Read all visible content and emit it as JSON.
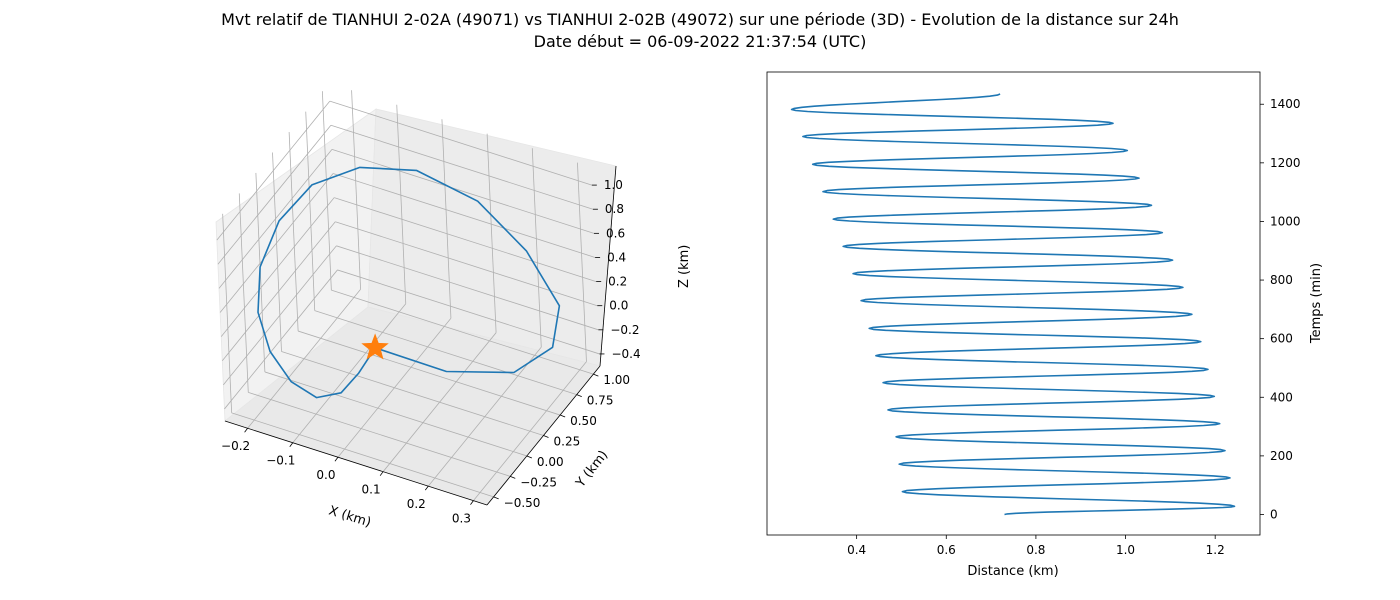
{
  "title_line_1": "Mvt relatif de TIANHUI 2-02A (49071) vs TIANHUI 2-02B (49072) sur une période (3D) - Evolution de la distance sur 24h",
  "title_line_2": "Date début = 06-09-2022 21:37:54 (UTC)",
  "colors": {
    "trajectory": "#1f77b4",
    "start_marker": "#ff7f0e",
    "grid": "#b0b0b0",
    "pane": "#f2f2f2"
  },
  "chart_data": [
    {
      "type": "line3d",
      "xlabel": "X (km)",
      "ylabel": "Y (km)",
      "zlabel": "Z (km)",
      "x_ticks": [
        "−0.2",
        "−0.1",
        "0.0",
        "0.1",
        "0.2",
        "0.3"
      ],
      "y_ticks": [
        "−0.50",
        "−0.25",
        "0.00",
        "0.25",
        "0.50",
        "0.75",
        "1.00"
      ],
      "z_ticks": [
        "−0.4",
        "−0.2",
        "0.0",
        "0.2",
        "0.4",
        "0.6",
        "0.8",
        "1.0"
      ],
      "xlim": [
        -0.25,
        0.33
      ],
      "ylim": [
        -0.6,
        1.1
      ],
      "zlim": [
        -0.5,
        1.15
      ],
      "grid": true,
      "marker": "star",
      "marker_point": {
        "x": 0.0,
        "y": 0.0,
        "z": 0.0
      },
      "trajectory": [
        {
          "x": 0.0,
          "y": 0.0,
          "z": 0.0
        },
        {
          "x": 0.15,
          "y": 0.05,
          "z": -0.05
        },
        {
          "x": 0.27,
          "y": 0.25,
          "z": -0.05
        },
        {
          "x": 0.32,
          "y": 0.5,
          "z": 0.05
        },
        {
          "x": 0.3,
          "y": 0.75,
          "z": 0.2
        },
        {
          "x": 0.2,
          "y": 0.95,
          "z": 0.4
        },
        {
          "x": 0.08,
          "y": 1.05,
          "z": 0.6
        },
        {
          "x": -0.05,
          "y": 1.02,
          "z": 0.72
        },
        {
          "x": -0.15,
          "y": 0.85,
          "z": 0.74
        },
        {
          "x": -0.22,
          "y": 0.6,
          "z": 0.68
        },
        {
          "x": -0.25,
          "y": 0.3,
          "z": 0.55
        },
        {
          "x": -0.25,
          "y": 0.0,
          "z": 0.37
        },
        {
          "x": -0.22,
          "y": -0.25,
          "z": 0.2
        },
        {
          "x": -0.17,
          "y": -0.42,
          "z": 0.05
        },
        {
          "x": -0.11,
          "y": -0.52,
          "z": -0.06
        },
        {
          "x": -0.05,
          "y": -0.55,
          "z": -0.1
        },
        {
          "x": -0.01,
          "y": -0.45,
          "z": -0.08
        },
        {
          "x": 0.0,
          "y": -0.25,
          "z": -0.04
        },
        {
          "x": 0.0,
          "y": -0.05,
          "z": -0.01
        }
      ]
    },
    {
      "type": "line",
      "xlabel": "Distance (km)",
      "ylabel": "Temps (min)",
      "xlim": [
        0.2,
        1.3
      ],
      "ylim": [
        -70,
        1510
      ],
      "x_ticks": [
        0.4,
        0.6,
        0.8,
        1.0,
        1.2
      ],
      "x_tick_labels": [
        "0.4",
        "0.6",
        "0.8",
        "1.0",
        "1.2"
      ],
      "y_ticks": [
        0,
        200,
        400,
        600,
        800,
        1000,
        1200,
        1400
      ],
      "y_tick_labels": [
        "0",
        "200",
        "400",
        "600",
        "800",
        "1000",
        "1200",
        "1400"
      ],
      "y_axis_side": "right",
      "grid": false,
      "series": [
        {
          "x": [
            0.73,
            1.243,
            0.502,
            1.233,
            0.495,
            1.222,
            0.488,
            1.21,
            0.47,
            1.198,
            0.459,
            1.184,
            0.443,
            1.168,
            0.428,
            1.148,
            0.41,
            1.128,
            0.392,
            1.105,
            0.37,
            1.082,
            0.348,
            1.058,
            0.325,
            1.03,
            0.302,
            1.004,
            0.28,
            0.972,
            0.255,
            0.72
          ],
          "y": [
            0,
            28,
            78,
            125,
            172,
            218,
            265,
            310,
            357,
            403,
            450,
            495,
            542,
            590,
            635,
            683,
            730,
            775,
            822,
            868,
            915,
            962,
            1008,
            1055,
            1102,
            1148,
            1195,
            1242,
            1290,
            1335,
            1382,
            1435
          ]
        }
      ]
    }
  ]
}
